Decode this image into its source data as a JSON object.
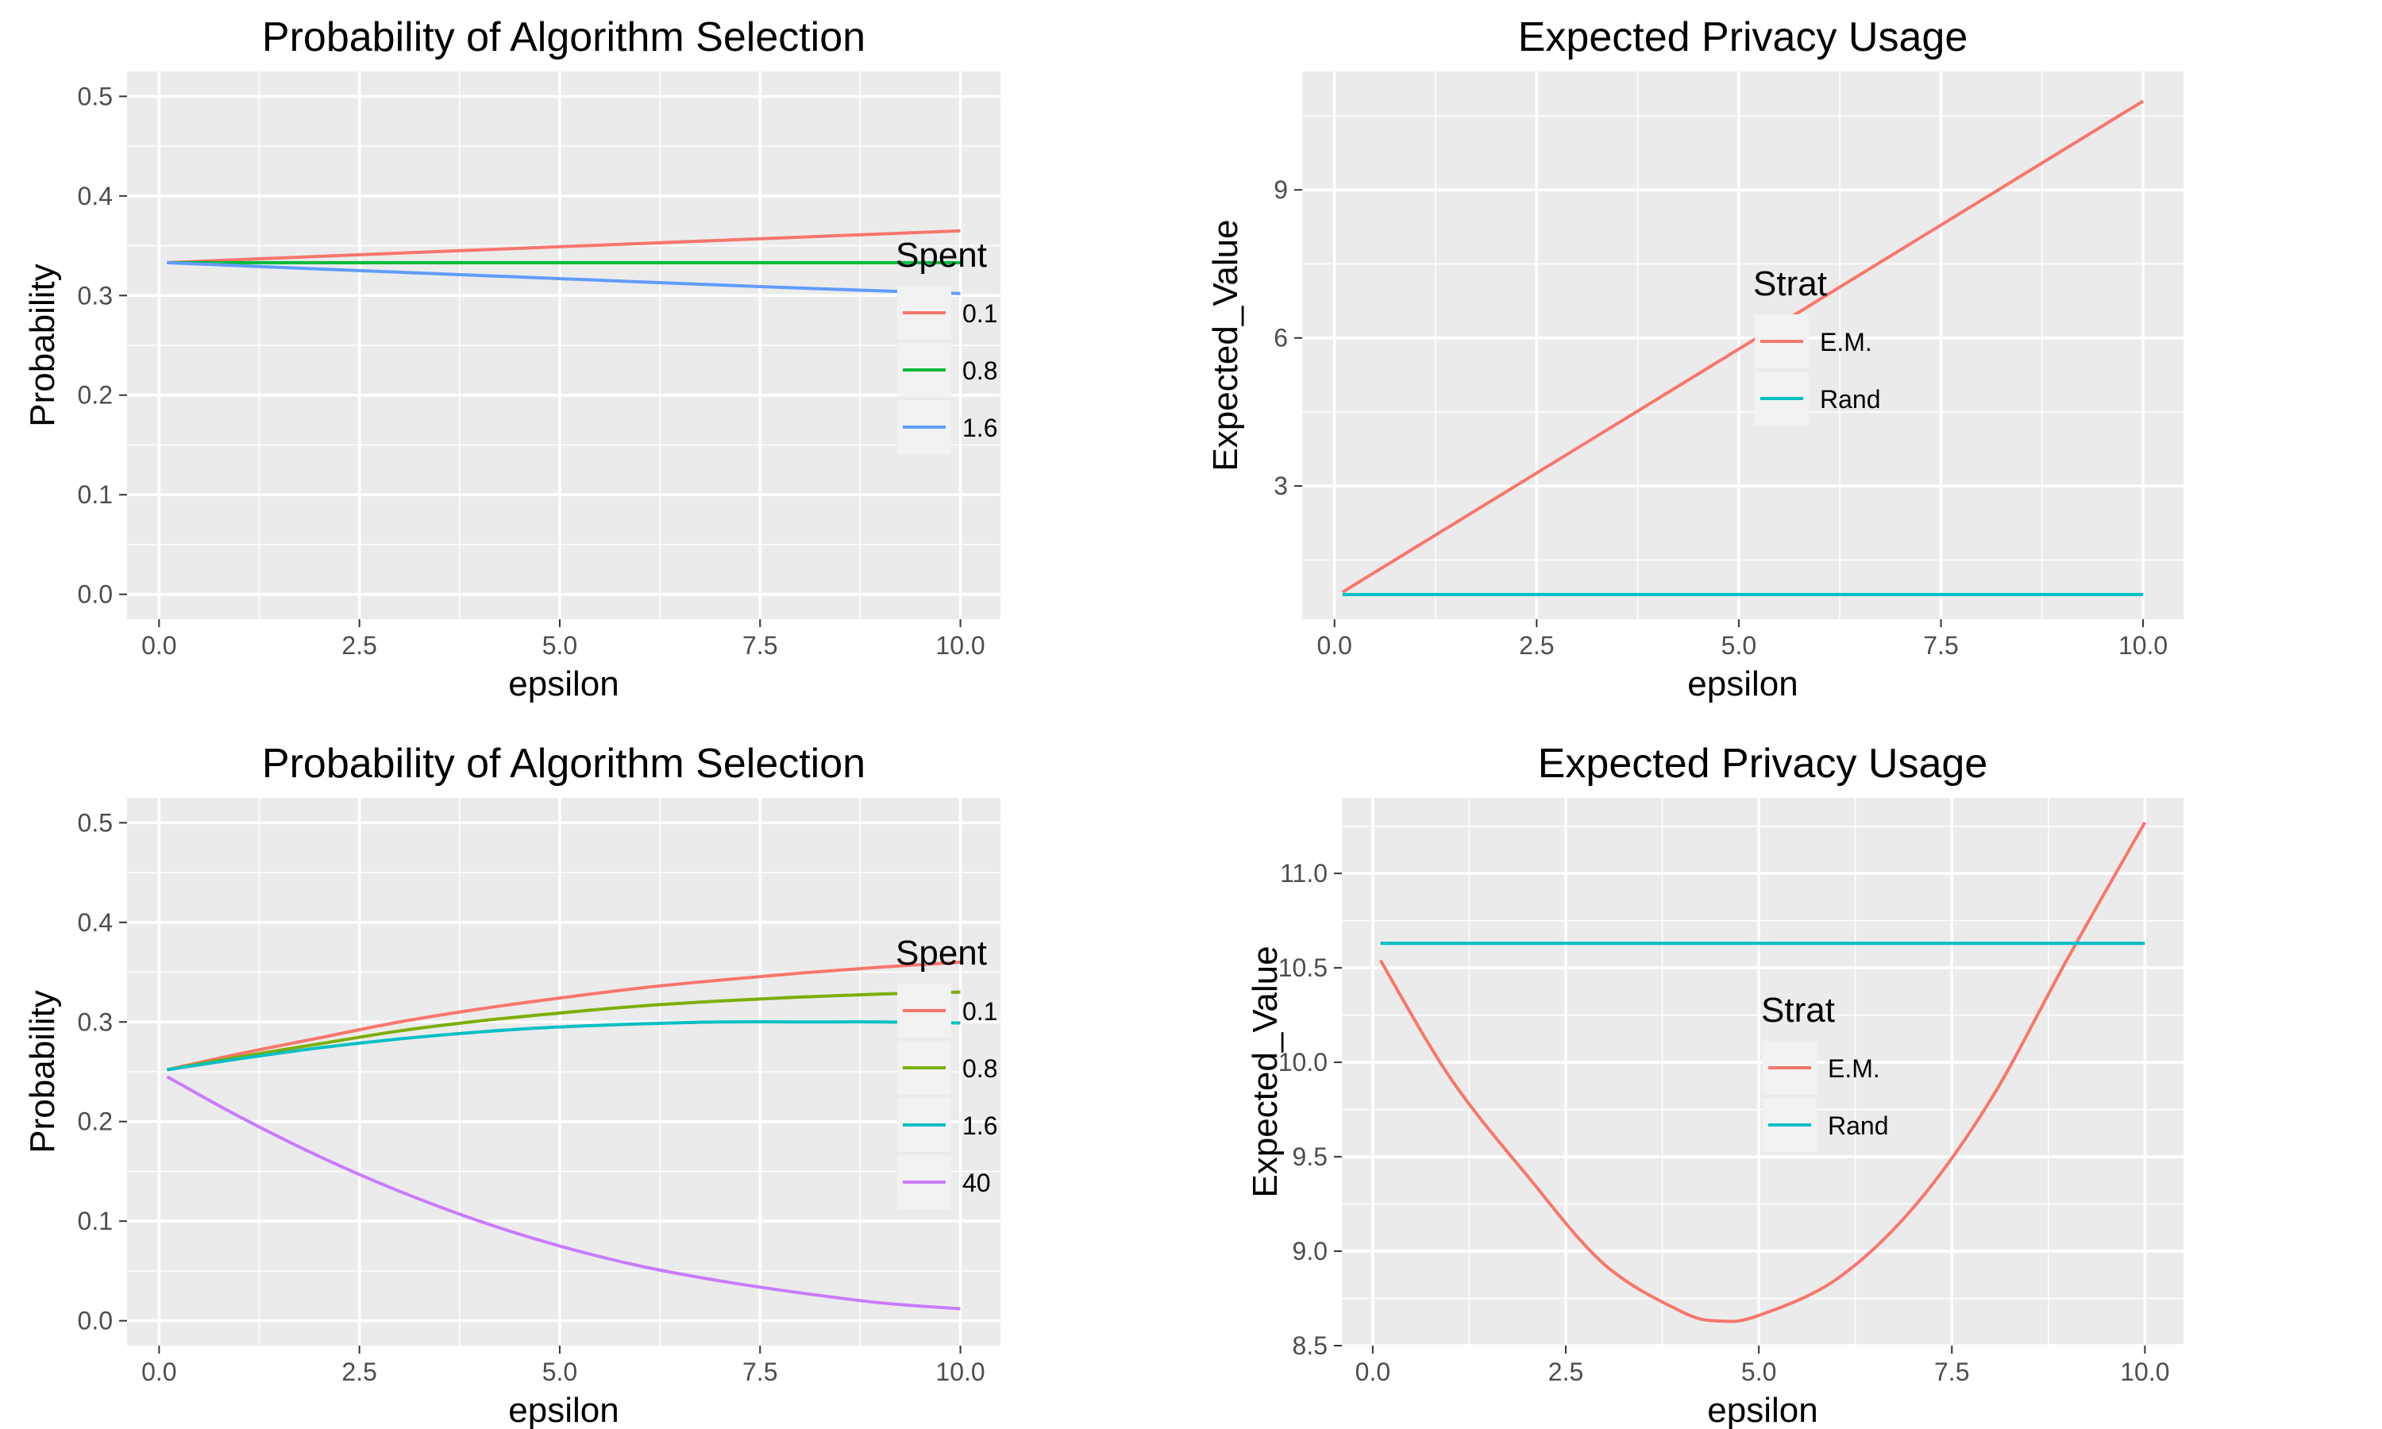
{
  "chart_data": [
    {
      "type": "line",
      "title": "Probability of Algorithm Selection",
      "xlabel": "epsilon",
      "ylabel": "Probability",
      "xlim": [
        -0.4,
        10.5
      ],
      "ylim": [
        -0.025,
        0.525
      ],
      "xticks": [
        0,
        2.5,
        5,
        7.5,
        10
      ],
      "xtick_labels": [
        "0.0",
        "2.5",
        "5.0",
        "7.5",
        "10.0"
      ],
      "yticks": [
        0,
        0.1,
        0.2,
        0.3,
        0.4,
        0.5
      ],
      "ytick_labels": [
        "0.0",
        "0.1",
        "0.2",
        "0.3",
        "0.4",
        "0.5"
      ],
      "grid": true,
      "legend": {
        "title": "Spent",
        "position": "right"
      },
      "series": [
        {
          "name": "0.1",
          "color": "#F8766D",
          "x": [
            0.1,
            2.5,
            5,
            7.5,
            10
          ],
          "y": [
            0.333,
            0.341,
            0.349,
            0.357,
            0.365
          ]
        },
        {
          "name": "0.8",
          "color": "#00BA38",
          "x": [
            0.1,
            2.5,
            5,
            7.5,
            10
          ],
          "y": [
            0.333,
            0.333,
            0.333,
            0.333,
            0.333
          ]
        },
        {
          "name": "1.6",
          "color": "#619CFF",
          "x": [
            0.1,
            2.5,
            5,
            7.5,
            10
          ],
          "y": [
            0.333,
            0.325,
            0.317,
            0.309,
            0.302
          ]
        }
      ]
    },
    {
      "type": "line",
      "title": "Expected Privacy Usage",
      "xlabel": "epsilon",
      "ylabel": "Expected_Value",
      "xlim": [
        -0.4,
        10.5
      ],
      "ylim": [
        0.3,
        11.4
      ],
      "xticks": [
        0,
        2.5,
        5,
        7.5,
        10
      ],
      "xtick_labels": [
        "0.0",
        "2.5",
        "5.0",
        "7.5",
        "10.0"
      ],
      "yticks": [
        3,
        6,
        9
      ],
      "ytick_labels": [
        "3",
        "6",
        "9"
      ],
      "grid": true,
      "legend": {
        "title": "Strat",
        "position": "right"
      },
      "series": [
        {
          "name": "E.M.",
          "color": "#F8766D",
          "x": [
            0.1,
            10
          ],
          "y": [
            0.85,
            10.8
          ]
        },
        {
          "name": "Rand",
          "color": "#00BFC4",
          "x": [
            0.1,
            10
          ],
          "y": [
            0.8,
            0.8
          ]
        }
      ]
    },
    {
      "type": "line",
      "title": "Probability of Algorithm Selection",
      "xlabel": "epsilon",
      "ylabel": "Probability",
      "xlim": [
        -0.4,
        10.5
      ],
      "ylim": [
        -0.025,
        0.525
      ],
      "xticks": [
        0,
        2.5,
        5,
        7.5,
        10
      ],
      "xtick_labels": [
        "0.0",
        "2.5",
        "5.0",
        "7.5",
        "10.0"
      ],
      "yticks": [
        0,
        0.1,
        0.2,
        0.3,
        0.4,
        0.5
      ],
      "ytick_labels": [
        "0.0",
        "0.1",
        "0.2",
        "0.3",
        "0.4",
        "0.5"
      ],
      "grid": true,
      "legend": {
        "title": "Spent",
        "position": "right"
      },
      "series": [
        {
          "name": "0.1",
          "color": "#F8766D",
          "x": [
            0.1,
            1,
            2,
            3,
            4,
            5,
            6,
            7,
            8,
            9,
            10
          ],
          "y": [
            0.252,
            0.268,
            0.284,
            0.3,
            0.313,
            0.324,
            0.334,
            0.342,
            0.349,
            0.355,
            0.36
          ]
        },
        {
          "name": "0.8",
          "color": "#7CAE00",
          "x": [
            0.1,
            1,
            2,
            3,
            4,
            5,
            6,
            7,
            8,
            9,
            10
          ],
          "y": [
            0.252,
            0.265,
            0.278,
            0.291,
            0.301,
            0.309,
            0.316,
            0.321,
            0.325,
            0.328,
            0.33
          ]
        },
        {
          "name": "1.6",
          "color": "#00BFC4",
          "x": [
            0.1,
            1,
            2,
            3,
            4,
            5,
            6,
            7,
            8,
            9,
            10
          ],
          "y": [
            0.252,
            0.263,
            0.274,
            0.283,
            0.29,
            0.295,
            0.298,
            0.3,
            0.3,
            0.3,
            0.299
          ]
        },
        {
          "name": "40",
          "color": "#C77CFF",
          "x": [
            0.1,
            1,
            2,
            3,
            4,
            5,
            6,
            7,
            8,
            9,
            10
          ],
          "y": [
            0.245,
            0.205,
            0.165,
            0.13,
            0.1,
            0.075,
            0.055,
            0.04,
            0.028,
            0.018,
            0.012
          ]
        }
      ]
    },
    {
      "type": "line",
      "title": "Expected Privacy Usage",
      "xlabel": "epsilon",
      "ylabel": "Expected_Value",
      "xlim": [
        -0.4,
        10.5
      ],
      "ylim": [
        8.5,
        11.4
      ],
      "xticks": [
        0,
        2.5,
        5,
        7.5,
        10
      ],
      "xtick_labels": [
        "0.0",
        "2.5",
        "5.0",
        "7.5",
        "10.0"
      ],
      "yticks": [
        8.5,
        9.0,
        9.5,
        10.0,
        10.5,
        11.0
      ],
      "ytick_labels": [
        "8.5",
        "9.0",
        "9.5",
        "10.0",
        "10.5",
        "11.0"
      ],
      "grid": true,
      "legend": {
        "title": "Strat",
        "position": "right"
      },
      "series": [
        {
          "name": "E.M.",
          "color": "#F8766D",
          "x": [
            0.1,
            1,
            2,
            3,
            4,
            4.5,
            5,
            6,
            7,
            8,
            9,
            10
          ],
          "y": [
            10.54,
            9.92,
            9.4,
            8.93,
            8.68,
            8.63,
            8.66,
            8.85,
            9.23,
            9.8,
            10.55,
            11.27
          ]
        },
        {
          "name": "Rand",
          "color": "#00BFC4",
          "x": [
            0.1,
            10
          ],
          "y": [
            10.63,
            10.63
          ]
        }
      ]
    }
  ]
}
